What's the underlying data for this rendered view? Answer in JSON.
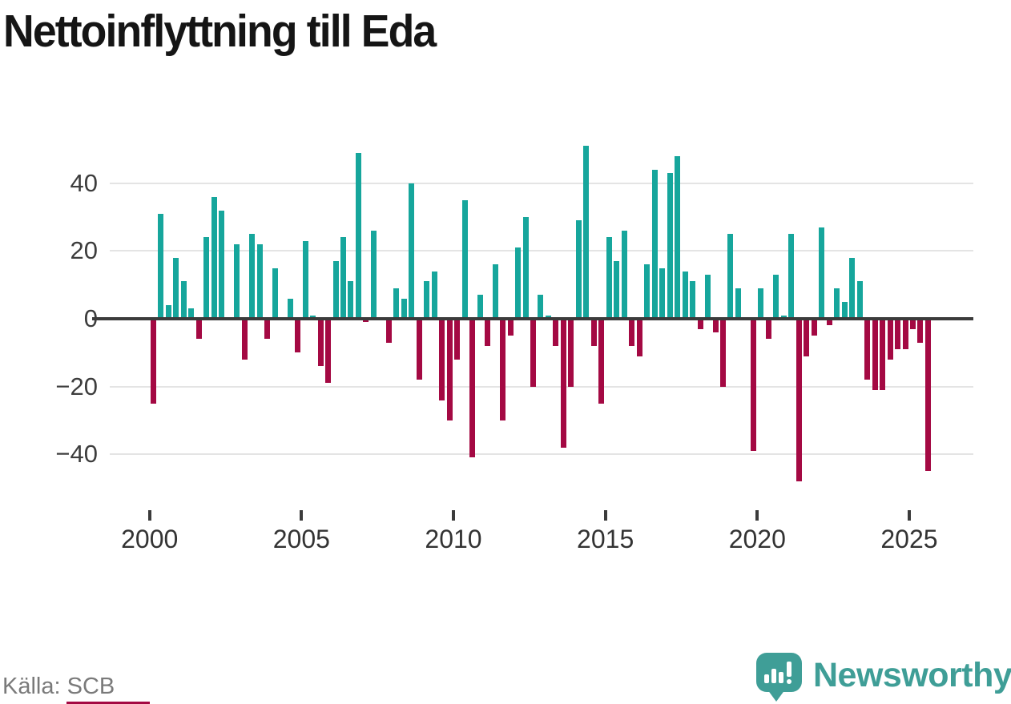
{
  "page": {
    "title": "Nettoinflyttning till Eda"
  },
  "footer": {
    "source": "Källa: SCB",
    "brand": "Newsworthy"
  },
  "axis": {
    "y_labels": [
      "40",
      "20",
      "0",
      "−20",
      "−40"
    ],
    "x_labels": [
      "2000",
      "2005",
      "2010",
      "2015",
      "2020",
      "2025"
    ]
  },
  "colors": {
    "positive": "#16a69c",
    "negative": "#a40943",
    "brand_teal": "#3f9e97",
    "grid": "#e4e4e4",
    "zero_line": "#3b3b3b",
    "title_text": "#151515",
    "axis_text": "#3d3d3d",
    "muted_text": "#7a7a7a"
  },
  "chart_data": {
    "type": "bar",
    "title": "Nettoinflyttning till Eda",
    "frequency": "quarterly",
    "x_start": "2000-Q1",
    "x_end": "2025-Q3",
    "x_tick_years": [
      2000,
      2005,
      2010,
      2015,
      2020,
      2025
    ],
    "y_ticks": [
      40,
      20,
      0,
      -20,
      -40
    ],
    "ylim": [
      -52,
      56
    ],
    "grid": "horizontal",
    "legend": "none",
    "series": [
      {
        "name": "Nettoinflyttning",
        "values": [
          -25,
          31,
          4,
          18,
          11,
          3,
          -6,
          24,
          36,
          32,
          0,
          22,
          -12,
          25,
          22,
          -6,
          15,
          0,
          6,
          -10,
          23,
          1,
          -14,
          -19,
          17,
          24,
          11,
          49,
          -1,
          26,
          0,
          -7,
          9,
          6,
          40,
          -18,
          11,
          14,
          -24,
          -30,
          -12,
          35,
          -41,
          7,
          -8,
          16,
          -30,
          -5,
          21,
          30,
          -20,
          7,
          1,
          -8,
          -38,
          -20,
          29,
          51,
          -8,
          -25,
          24,
          17,
          26,
          -8,
          -11,
          16,
          44,
          15,
          43,
          48,
          14,
          11,
          -3,
          13,
          -4,
          -20,
          25,
          9,
          0,
          -39,
          9,
          -6,
          13,
          1,
          25,
          -48,
          -11,
          -5,
          27,
          -2,
          9,
          5,
          18,
          11,
          -18,
          -21,
          -21,
          -12,
          -9,
          -9,
          -3,
          -7,
          -45
        ]
      }
    ]
  }
}
